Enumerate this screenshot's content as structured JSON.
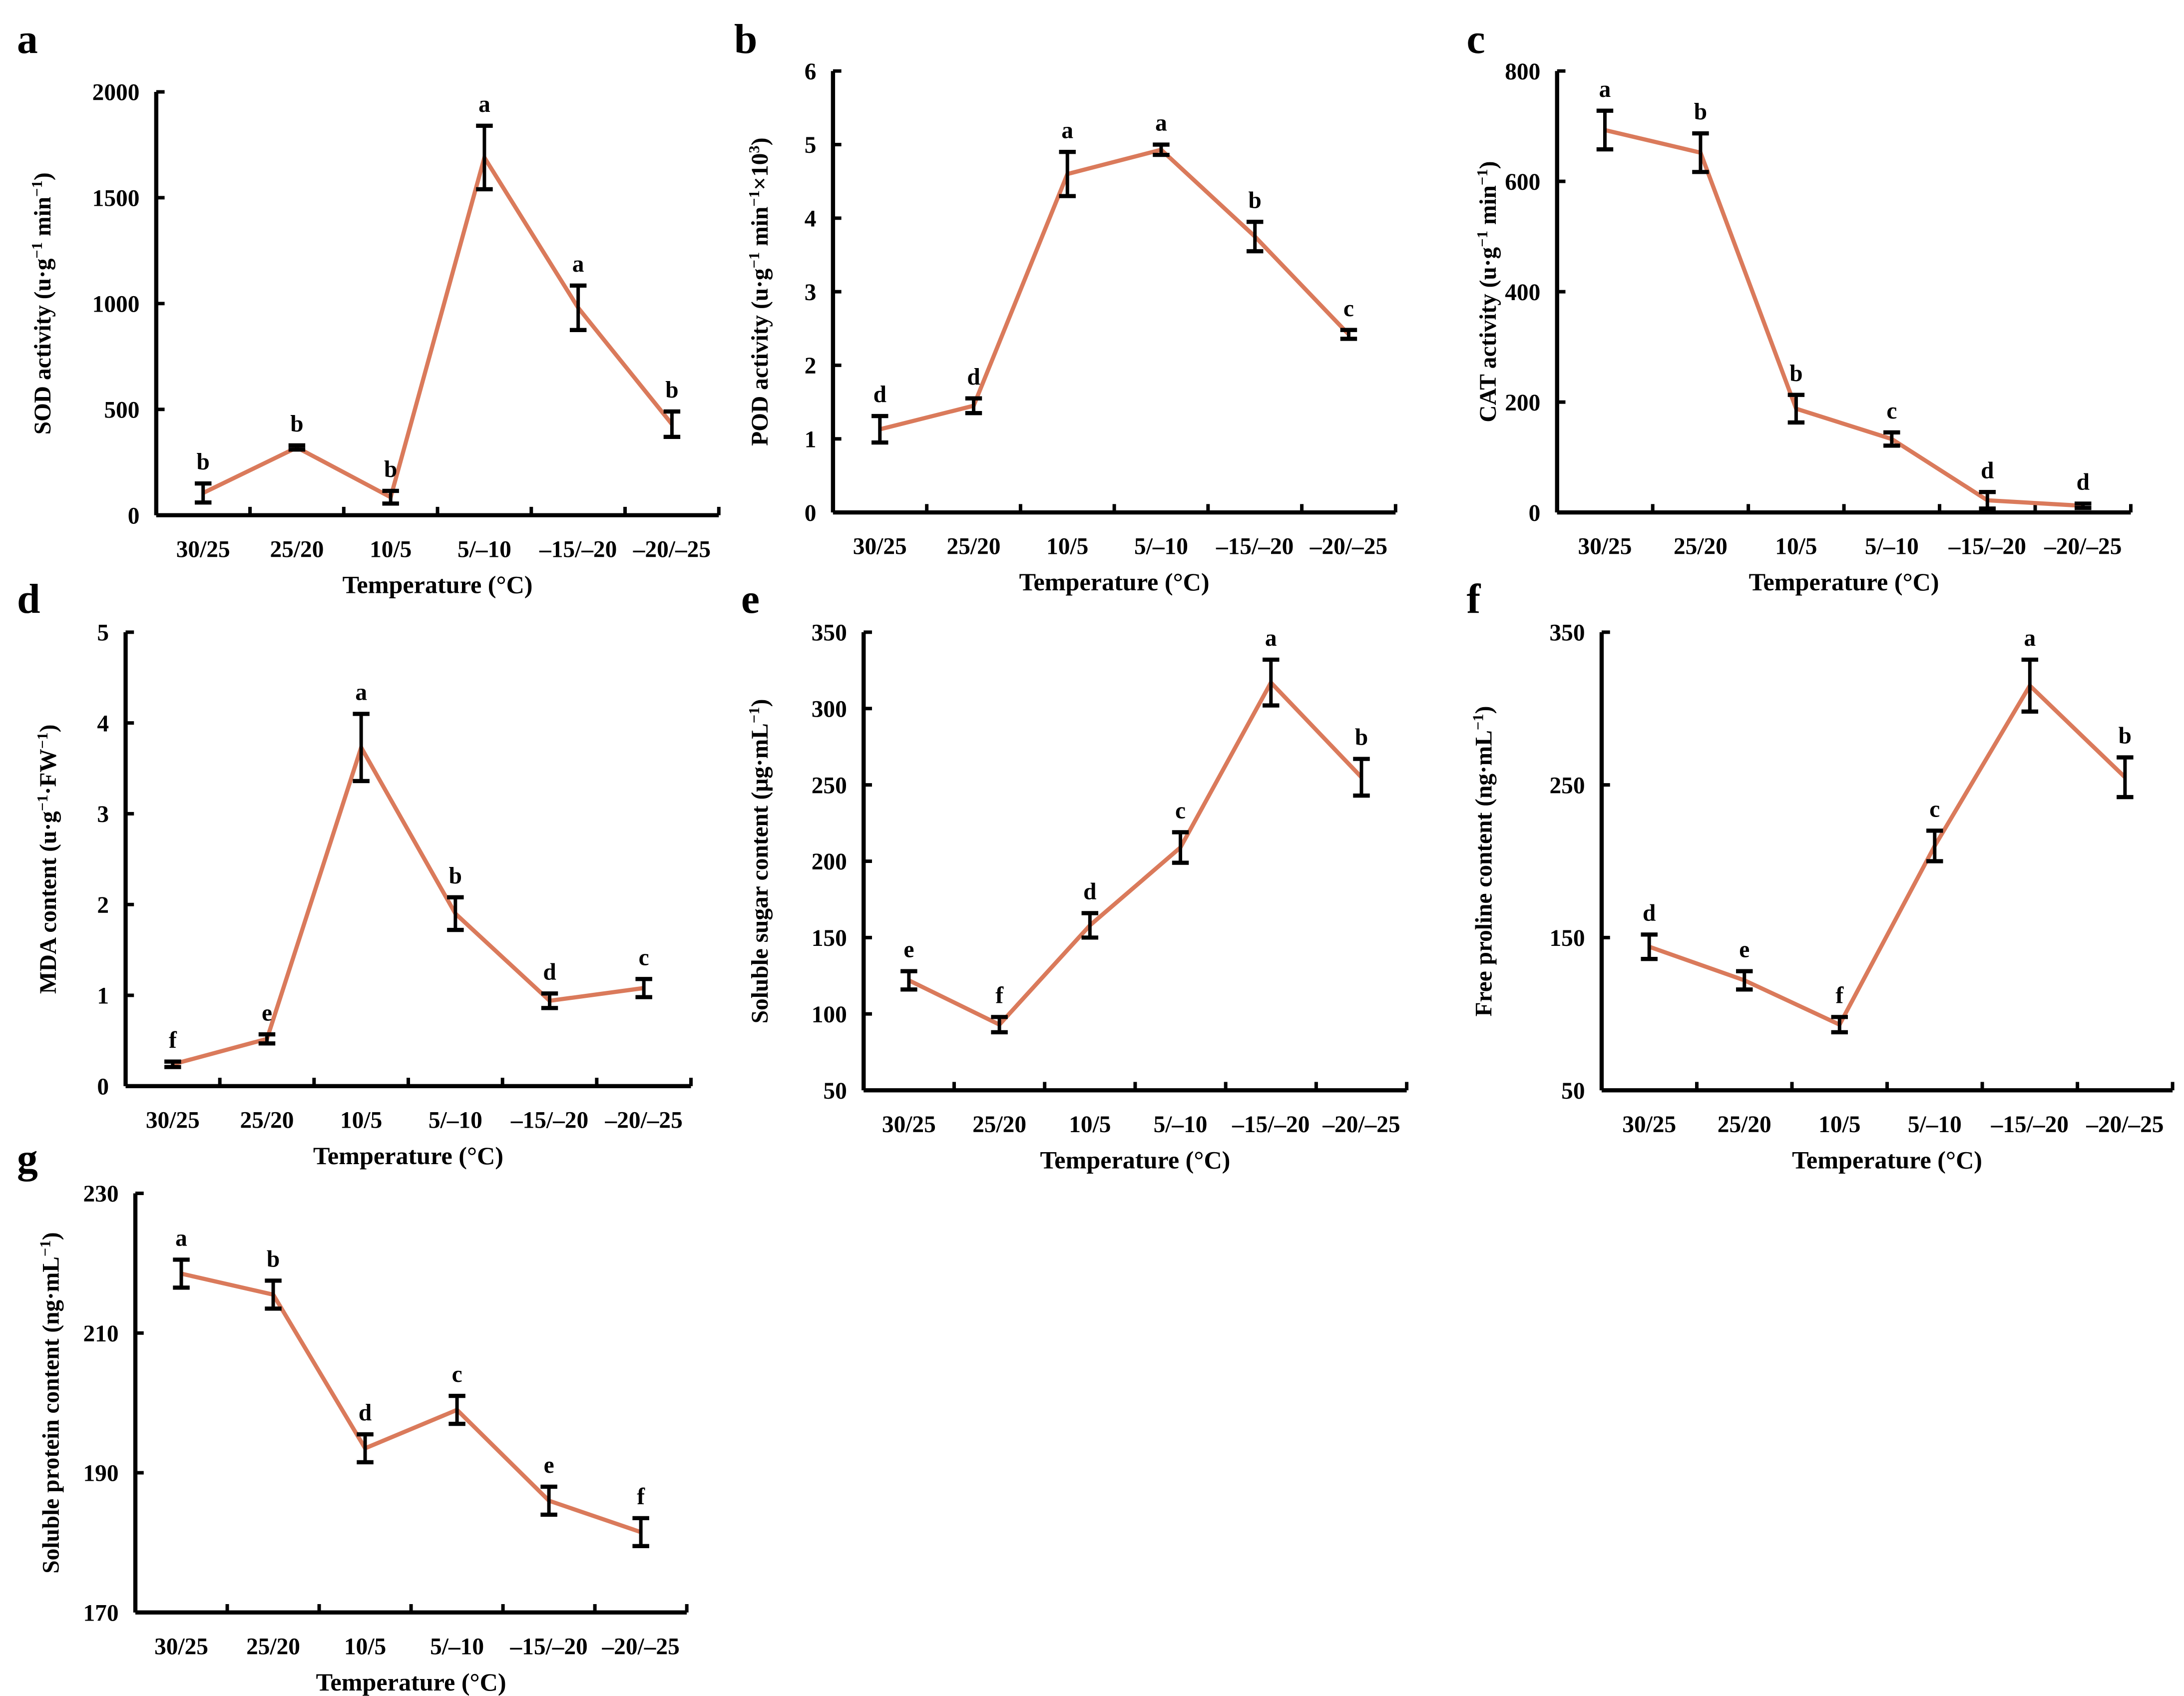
{
  "colors": {
    "line": "#DA7A5B",
    "axis": "#000000",
    "error_bar": "#000000"
  },
  "chart_data": [
    {
      "panel": "a",
      "type": "line",
      "categories": [
        "30/25",
        "25/20",
        "10/5",
        "5/–10",
        "–15/–20",
        "–20/–25"
      ],
      "values": [
        105,
        320,
        85,
        1690,
        980,
        430
      ],
      "errors": [
        45,
        10,
        30,
        150,
        105,
        60
      ],
      "letters": [
        "b",
        "b",
        "b",
        "a",
        "a",
        "b"
      ],
      "ylabel": [
        {
          "t": "SOD activity  (u·g"
        },
        {
          "t": "−1",
          "sup": true
        },
        {
          "t": " min"
        },
        {
          "t": "−1",
          "sup": true
        },
        {
          "t": ")"
        }
      ],
      "xlabel": "Temperature (°C)",
      "ylim": [
        0,
        2000
      ],
      "yticks": [
        0,
        500,
        1000,
        1500,
        2000
      ]
    },
    {
      "panel": "b",
      "type": "line",
      "categories": [
        "30/25",
        "25/20",
        "10/5",
        "5/–10",
        "–15/–20",
        "–20/–25"
      ],
      "values": [
        1.13,
        1.45,
        4.6,
        4.93,
        3.75,
        2.42
      ],
      "errors": [
        0.18,
        0.1,
        0.3,
        0.07,
        0.2,
        0.06
      ],
      "letters": [
        "d",
        "d",
        "a",
        "a",
        "b",
        "c"
      ],
      "ylabel": [
        {
          "t": "POD activity (u·g"
        },
        {
          "t": "−1",
          "sup": true
        },
        {
          "t": " min"
        },
        {
          "t": "−1",
          "sup": true
        },
        {
          "t": "×10"
        },
        {
          "t": "3",
          "sup": true
        },
        {
          "t": ")"
        }
      ],
      "xlabel": "Temperature (°C)",
      "ylim": [
        0,
        6
      ],
      "yticks": [
        0,
        1,
        2,
        3,
        4,
        5,
        6
      ]
    },
    {
      "panel": "c",
      "type": "line",
      "categories": [
        "30/25",
        "25/20",
        "10/5",
        "5/–10",
        "–15/–20",
        "–20/–25"
      ],
      "values": [
        693,
        652,
        188,
        133,
        22,
        12
      ],
      "errors": [
        35,
        35,
        25,
        12,
        15,
        4
      ],
      "letters": [
        "a",
        "b",
        "b",
        "c",
        "d",
        "d"
      ],
      "ylabel": [
        {
          "t": "CAT activity (u·g"
        },
        {
          "t": "−1",
          "sup": true
        },
        {
          "t": " min"
        },
        {
          "t": "−1",
          "sup": true
        },
        {
          "t": ")"
        }
      ],
      "xlabel": "Temperature (°C)",
      "ylim": [
        0,
        800
      ],
      "yticks": [
        0,
        200,
        400,
        600,
        800
      ]
    },
    {
      "panel": "d",
      "type": "line",
      "categories": [
        "30/25",
        "25/20",
        "10/5",
        "5/–10",
        "–15/–20",
        "–20/–25"
      ],
      "values": [
        0.24,
        0.52,
        3.73,
        1.9,
        0.94,
        1.08
      ],
      "errors": [
        0.03,
        0.05,
        0.37,
        0.18,
        0.08,
        0.1
      ],
      "letters": [
        "f",
        "e",
        "a",
        "b",
        "d",
        "c"
      ],
      "ylabel": [
        {
          "t": "MDA content (u·g"
        },
        {
          "t": "−1",
          "sup": true
        },
        {
          "t": "·FW"
        },
        {
          "t": "−1",
          "sup": true
        },
        {
          "t": ")"
        }
      ],
      "xlabel": "Temperature (°C)",
      "ylim": [
        0,
        5
      ],
      "yticks": [
        0,
        1,
        2,
        3,
        4,
        5
      ]
    },
    {
      "panel": "e",
      "type": "line",
      "categories": [
        "30/25",
        "25/20",
        "10/5",
        "5/–10",
        "–15/–20",
        "–20/–25"
      ],
      "values": [
        122,
        93,
        158,
        209,
        317,
        255
      ],
      "errors": [
        6,
        5,
        8,
        10,
        15,
        12
      ],
      "letters": [
        "e",
        "f",
        "d",
        "c",
        "a",
        "b"
      ],
      "ylabel": [
        {
          "t": "Soluble sugar content (μg·mL"
        },
        {
          "t": "−1",
          "sup": true
        },
        {
          "t": ")"
        }
      ],
      "xlabel": "Temperature (°C)",
      "ylim": [
        50,
        350
      ],
      "yticks": [
        50,
        100,
        150,
        200,
        250,
        300,
        350
      ]
    },
    {
      "panel": "f",
      "type": "line",
      "categories": [
        "30/25",
        "25/20",
        "10/5",
        "5/–10",
        "–15/–20",
        "–20/–25"
      ],
      "values": [
        144,
        122,
        93,
        210,
        315,
        255
      ],
      "errors": [
        8,
        6,
        5,
        10,
        17,
        13
      ],
      "letters": [
        "d",
        "e",
        "f",
        "c",
        "a",
        "b"
      ],
      "ylabel": [
        {
          "t": "Free proline content (ng·mL"
        },
        {
          "t": "−1",
          "sup": true
        },
        {
          "t": ")"
        }
      ],
      "xlabel": "Temperature (°C)",
      "ylim": [
        50,
        350
      ],
      "yticks": [
        50,
        150,
        250,
        350
      ]
    },
    {
      "panel": "g",
      "type": "line",
      "categories": [
        "30/25",
        "25/20",
        "10/5",
        "5/–10",
        "–15/–20",
        "–20/–25"
      ],
      "values": [
        218.5,
        215.5,
        193.5,
        199,
        186,
        181.5
      ],
      "errors": [
        2,
        2,
        2,
        2,
        2,
        2
      ],
      "letters": [
        "a",
        "b",
        "d",
        "c",
        "e",
        "f"
      ],
      "ylabel": [
        {
          "t": "Soluble protein content (ng·mL"
        },
        {
          "t": "−1",
          "sup": true
        },
        {
          "t": ")"
        }
      ],
      "xlabel": "Temperature (°C)",
      "ylim": [
        170,
        230
      ],
      "yticks": [
        170,
        190,
        210,
        230
      ]
    }
  ]
}
